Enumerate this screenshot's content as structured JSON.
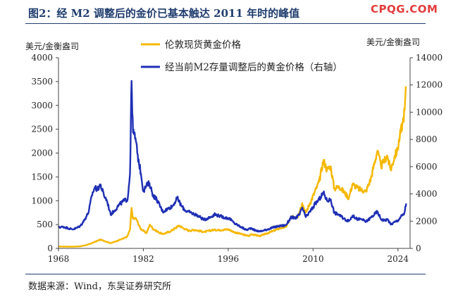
{
  "header": {
    "title": "图2：经 M2 调整后的金价已基本触达 2011 年时的峰值",
    "watermark": "CPQG.COM"
  },
  "source_note": "数据来源：Wind，东吴证券研究所",
  "colors": {
    "gold": "#F5B800",
    "blue": "#1F2FB5",
    "axis": "#444444",
    "title": "#1f3d6e"
  },
  "chart_data": {
    "type": "line",
    "title": "",
    "left_axis": {
      "label": "美元/金衡盎司",
      "min": 0,
      "max": 4000,
      "ticks": [
        0,
        500,
        1000,
        1500,
        2000,
        2500,
        3000,
        3500,
        4000
      ]
    },
    "right_axis": {
      "label": "美元/金衡盎司",
      "min": 0,
      "max": 14000,
      "ticks": [
        0,
        2000,
        4000,
        6000,
        8000,
        10000,
        12000,
        14000
      ]
    },
    "x_axis": {
      "min": 1968,
      "max": 2026,
      "ticks": [
        1968,
        1982,
        1996,
        2010,
        2024
      ]
    },
    "series": [
      {
        "name": "伦敦现货黄金价格",
        "axis": "left",
        "color": "#F5B800",
        "points": [
          [
            1968,
            40
          ],
          [
            1970,
            36
          ],
          [
            1971.5,
            42
          ],
          [
            1972.5,
            65
          ],
          [
            1973.5,
            110
          ],
          [
            1974.9,
            185
          ],
          [
            1975.5,
            160
          ],
          [
            1976.6,
            110
          ],
          [
            1977.5,
            150
          ],
          [
            1978.5,
            200
          ],
          [
            1979.3,
            240
          ],
          [
            1979.8,
            390
          ],
          [
            1980.05,
            850
          ],
          [
            1980.3,
            620
          ],
          [
            1980.8,
            630
          ],
          [
            1981.5,
            420
          ],
          [
            1982.5,
            320
          ],
          [
            1983.1,
            500
          ],
          [
            1983.6,
            410
          ],
          [
            1984.5,
            340
          ],
          [
            1985.2,
            300
          ],
          [
            1986.5,
            360
          ],
          [
            1987.9,
            480
          ],
          [
            1988.5,
            430
          ],
          [
            1989.5,
            370
          ],
          [
            1990.5,
            390
          ],
          [
            1992,
            345
          ],
          [
            1993.6,
            390
          ],
          [
            1994.5,
            385
          ],
          [
            1996,
            400
          ],
          [
            1997,
            340
          ],
          [
            1998.5,
            290
          ],
          [
            1999.4,
            258
          ],
          [
            1999.8,
            300
          ],
          [
            2001.2,
            260
          ],
          [
            2002.5,
            320
          ],
          [
            2003.5,
            370
          ],
          [
            2004.5,
            420
          ],
          [
            2005.5,
            450
          ],
          [
            2006.4,
            650
          ],
          [
            2007.5,
            670
          ],
          [
            2008.2,
            950
          ],
          [
            2008.8,
            750
          ],
          [
            2009.5,
            950
          ],
          [
            2010.5,
            1250
          ],
          [
            2011.0,
            1400
          ],
          [
            2011.7,
            1850
          ],
          [
            2012.3,
            1650
          ],
          [
            2012.9,
            1720
          ],
          [
            2013.5,
            1250
          ],
          [
            2014.3,
            1300
          ],
          [
            2015.9,
            1060
          ],
          [
            2016.5,
            1350
          ],
          [
            2017.5,
            1250
          ],
          [
            2018.7,
            1190
          ],
          [
            2019.5,
            1450
          ],
          [
            2020.6,
            2050
          ],
          [
            2021.2,
            1720
          ],
          [
            2021.6,
            1800
          ],
          [
            2022.2,
            1950
          ],
          [
            2022.8,
            1650
          ],
          [
            2023.5,
            1950
          ],
          [
            2023.9,
            2050
          ],
          [
            2024.3,
            2350
          ],
          [
            2024.8,
            2650
          ],
          [
            2025.1,
            2900
          ],
          [
            2025.35,
            3400
          ]
        ]
      },
      {
        "name": "经当前M2存量调整后的黄金价格（右轴）",
        "axis": "right",
        "color": "#1F2FB5",
        "points": [
          [
            1968,
            1550
          ],
          [
            1968.8,
            1580
          ],
          [
            1969.5,
            1500
          ],
          [
            1970.3,
            1400
          ],
          [
            1971.0,
            1500
          ],
          [
            1971.6,
            1650
          ],
          [
            1972.3,
            2100
          ],
          [
            1973.0,
            2700
          ],
          [
            1973.5,
            3900
          ],
          [
            1974.0,
            4500
          ],
          [
            1974.4,
            4300
          ],
          [
            1974.9,
            4700
          ],
          [
            1975.5,
            3900
          ],
          [
            1976.0,
            3500
          ],
          [
            1976.6,
            2500
          ],
          [
            1977.3,
            2800
          ],
          [
            1978.0,
            3200
          ],
          [
            1978.8,
            3500
          ],
          [
            1979.4,
            3600
          ],
          [
            1979.8,
            5500
          ],
          [
            1980.05,
            12300
          ],
          [
            1980.3,
            8500
          ],
          [
            1980.7,
            8100
          ],
          [
            1981.0,
            7000
          ],
          [
            1981.6,
            5500
          ],
          [
            1982.0,
            4200
          ],
          [
            1982.5,
            4600
          ],
          [
            1983.0,
            4800
          ],
          [
            1983.6,
            3900
          ],
          [
            1984.2,
            3600
          ],
          [
            1985.2,
            2700
          ],
          [
            1986.0,
            2900
          ],
          [
            1986.8,
            3100
          ],
          [
            1987.6,
            3700
          ],
          [
            1988.3,
            3100
          ],
          [
            1989.0,
            2750
          ],
          [
            1990.0,
            2600
          ],
          [
            1991.0,
            2400
          ],
          [
            1992.0,
            2100
          ],
          [
            1993.3,
            2350
          ],
          [
            1993.7,
            2500
          ],
          [
            1994.5,
            2400
          ],
          [
            1995.5,
            2250
          ],
          [
            1996.2,
            2200
          ],
          [
            1997.0,
            1850
          ],
          [
            1998.0,
            1600
          ],
          [
            1999.0,
            1350
          ],
          [
            1999.8,
            1500
          ],
          [
            2000.5,
            1300
          ],
          [
            2001.3,
            1250
          ],
          [
            2002.5,
            1400
          ],
          [
            2003.5,
            1550
          ],
          [
            2004.5,
            1650
          ],
          [
            2005.5,
            1700
          ],
          [
            2006.4,
            2300
          ],
          [
            2007.0,
            2200
          ],
          [
            2007.8,
            2500
          ],
          [
            2008.2,
            3000
          ],
          [
            2008.8,
            2300
          ],
          [
            2009.5,
            2700
          ],
          [
            2010.4,
            3300
          ],
          [
            2011.0,
            3600
          ],
          [
            2011.7,
            4100
          ],
          [
            2012.3,
            3500
          ],
          [
            2012.9,
            3600
          ],
          [
            2013.5,
            2600
          ],
          [
            2014.2,
            2500
          ],
          [
            2015.0,
            2200
          ],
          [
            2015.9,
            2000
          ],
          [
            2016.5,
            2400
          ],
          [
            2017.3,
            2150
          ],
          [
            2018.0,
            2150
          ],
          [
            2018.7,
            1950
          ],
          [
            2019.5,
            2250
          ],
          [
            2020.6,
            2700
          ],
          [
            2021.2,
            2150
          ],
          [
            2021.8,
            2050
          ],
          [
            2022.3,
            2150
          ],
          [
            2022.8,
            1750
          ],
          [
            2023.5,
            1950
          ],
          [
            2024.0,
            2050
          ],
          [
            2024.5,
            2350
          ],
          [
            2025.0,
            2500
          ],
          [
            2025.35,
            3300
          ]
        ]
      }
    ]
  }
}
